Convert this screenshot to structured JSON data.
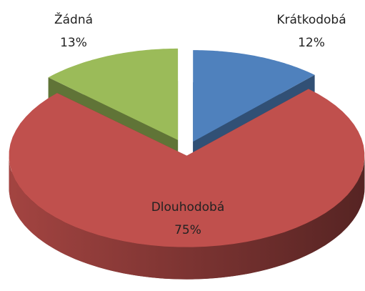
{
  "chart_data": {
    "type": "pie",
    "three_d": true,
    "categories": [
      "Krátkodobá",
      "Dlouhodobá",
      "Žádná"
    ],
    "values": [
      12,
      75,
      13
    ],
    "value_labels": [
      "12%",
      "75%",
      "13%"
    ],
    "colors": [
      "#4f81bd",
      "#c0504d",
      "#9bbb59"
    ]
  }
}
